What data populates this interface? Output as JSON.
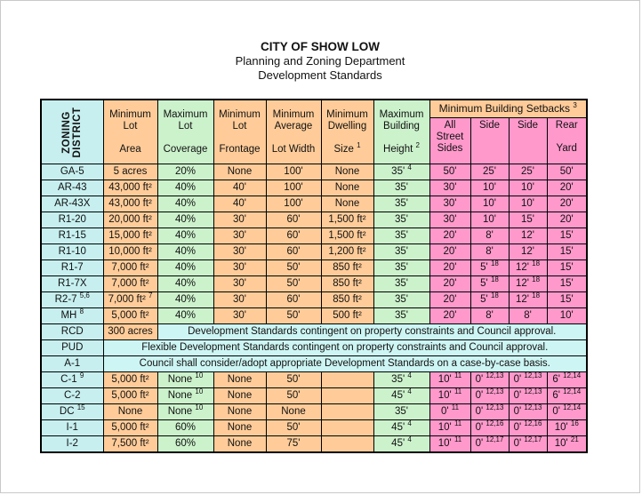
{
  "title": {
    "line1": "CITY OF SHOW LOW",
    "line2": "Planning and Zoning Department",
    "line3": "Development Standards"
  },
  "colors": {
    "district_column": "#c7efef",
    "dimension_columns": "#ffcc99",
    "coverage_height_columns": "#ccf2cc",
    "setback_columns": "#ff99cc",
    "merged_note_cells": "#cdf5f3"
  },
  "table": {
    "header": {
      "zoning": "ZONING\nDISTRICT",
      "lot_area": "Minimum\nLot\n\nArea",
      "coverage": "Maximum\nLot\n\nCoverage",
      "frontage": "Minimum\nLot\n\nFrontage",
      "avg_width": "Minimum\nAverage\n\nLot Width",
      "dwelling": "Minimum\nDwelling\n\nSize^1",
      "height": "Maximum\nBuilding\n\nHeight^2",
      "setbacks_group": "Minimum Building Setbacks^3",
      "setbacks": [
        "All\nStreet\nSides",
        "Side",
        "Side",
        "Rear\n\nYard"
      ]
    },
    "rows": [
      {
        "district": "GA-5",
        "cells": [
          "5 acres",
          "20%",
          "None",
          "100'",
          "None",
          "35'^4",
          "50'",
          "25'",
          "25'",
          "50'"
        ]
      },
      {
        "district": "AR-43",
        "cells": [
          "43,000 ft²",
          "40%",
          "40'",
          "100'",
          "None",
          "35'",
          "30'",
          "10'",
          "10'",
          "20'"
        ]
      },
      {
        "district": "AR-43X",
        "cells": [
          "43,000 ft²",
          "40%",
          "40'",
          "100'",
          "None",
          "35'",
          "30'",
          "10'",
          "10'",
          "20'"
        ]
      },
      {
        "district": "R1-20",
        "cells": [
          "20,000 ft²",
          "40%",
          "30'",
          "60'",
          "1,500 ft²",
          "35'",
          "30'",
          "10'",
          "15'",
          "20'"
        ]
      },
      {
        "district": "R1-15",
        "cells": [
          "15,000 ft²",
          "40%",
          "30'",
          "60'",
          "1,500 ft²",
          "35'",
          "20'",
          "8'",
          "12'",
          "15'"
        ]
      },
      {
        "district": "R1-10",
        "cells": [
          "10,000 ft²",
          "40%",
          "30'",
          "60'",
          "1,200 ft²",
          "35'",
          "20'",
          "8'",
          "12'",
          "15'"
        ]
      },
      {
        "district": "R1-7",
        "cells": [
          "7,000 ft²",
          "40%",
          "30'",
          "50'",
          "850 ft²",
          "35'",
          "20'",
          "5'^18",
          "12'^18",
          "15'"
        ]
      },
      {
        "district": "R1-7X",
        "cells": [
          "7,000 ft²",
          "40%",
          "30'",
          "50'",
          "850 ft²",
          "35'",
          "20'",
          "5'^18",
          "12'^18",
          "15'"
        ]
      },
      {
        "district": "R2-7^5,6",
        "cells": [
          "7,000 ft²^7",
          "40%",
          "30'",
          "60'",
          "850 ft²",
          "35'",
          "20'",
          "5'^18",
          "12'^18",
          "15'"
        ]
      },
      {
        "district": "MH^8",
        "cells": [
          "5,000 ft²",
          "40%",
          "30'",
          "50'",
          "500 ft²",
          "35'",
          "20'",
          "8'",
          "8'",
          "10'"
        ]
      },
      {
        "district": "RCD",
        "lot_area": "300 acres",
        "merged": "Development Standards contingent on property constraints and Council approval."
      },
      {
        "district": "PUD",
        "merged": "Flexible Development Standards contingent on property constraints and Council approval."
      },
      {
        "district": "A-1",
        "merged": "Council shall consider/adopt appropriate Development Standards on a case-by-case basis."
      },
      {
        "district": "C-1^9",
        "cells": [
          "5,000 ft²",
          "None^10",
          "None",
          "50'",
          "",
          "35'^4",
          "10'^11",
          "0'^12,13",
          "0'^12,13",
          "6'^12,14"
        ]
      },
      {
        "district": "C-2",
        "cells": [
          "5,000 ft²",
          "None^10",
          "None",
          "50'",
          "",
          "45'^4",
          "10'^11",
          "0'^12,13",
          "0'^12,13",
          "6'^12,14"
        ]
      },
      {
        "district": "DC^15",
        "cells": [
          "None",
          "None^10",
          "None",
          "None",
          "",
          "35'",
          "0'^11",
          "0'^12,13",
          "0'^12,13",
          "0'^12,14"
        ]
      },
      {
        "district": "I-1",
        "cells": [
          "5,000 ft²",
          "60%",
          "None",
          "50'",
          "",
          "45'^4",
          "10'^11",
          "0'^12,16",
          "0'^12,16",
          "10'^16"
        ]
      },
      {
        "district": "I-2",
        "cells": [
          "7,500 ft²",
          "60%",
          "None",
          "75'",
          "",
          "45'^4",
          "10'^11",
          "0'^12,17",
          "0'^12,17",
          "10'^21"
        ]
      }
    ]
  }
}
